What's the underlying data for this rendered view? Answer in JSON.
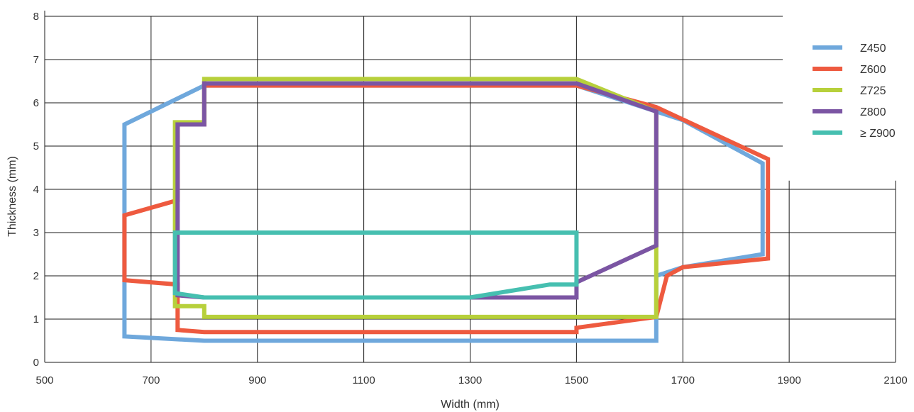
{
  "chart_data": {
    "type": "line",
    "title": "",
    "xlabel": "Width (mm)",
    "ylabel": "Thickness (mm)",
    "xlim": [
      500,
      2100
    ],
    "ylim": [
      0,
      8
    ],
    "x_ticks": [
      "500",
      "700",
      "900",
      "1100",
      "1300",
      "1500",
      "1700",
      "1900",
      "2100"
    ],
    "y_ticks": [
      "0",
      "1",
      "2",
      "3",
      "4",
      "5",
      "6",
      "7",
      "8"
    ],
    "grid": true,
    "legend_position": "top-right",
    "series": [
      {
        "name": "Z450",
        "color": "#6FA8DC",
        "closed": true,
        "points": [
          [
            650,
            0.6
          ],
          [
            800,
            0.5
          ],
          [
            1650,
            0.5
          ],
          [
            1650,
            2.0
          ],
          [
            1700,
            2.2
          ],
          [
            1850,
            2.5
          ],
          [
            1850,
            4.6
          ],
          [
            1700,
            5.6
          ],
          [
            1500,
            6.4
          ],
          [
            800,
            6.4
          ],
          [
            650,
            5.5
          ]
        ]
      },
      {
        "name": "Z600",
        "color": "#EE5A3F",
        "closed": true,
        "points": [
          [
            750,
            0.75
          ],
          [
            800,
            0.7
          ],
          [
            1500,
            0.7
          ],
          [
            1500,
            0.8
          ],
          [
            1650,
            1.05
          ],
          [
            1670,
            2.0
          ],
          [
            1700,
            2.2
          ],
          [
            1860,
            2.4
          ],
          [
            1860,
            4.7
          ],
          [
            1650,
            5.9
          ],
          [
            1500,
            6.4
          ],
          [
            800,
            6.4
          ],
          [
            800,
            5.5
          ],
          [
            750,
            5.5
          ],
          [
            750,
            3.75
          ],
          [
            650,
            3.4
          ],
          [
            650,
            1.9
          ],
          [
            750,
            1.8
          ]
        ]
      },
      {
        "name": "Z725",
        "color": "#B7D03B",
        "closed": true,
        "points": [
          [
            745,
            1.3
          ],
          [
            800,
            1.3
          ],
          [
            800,
            1.05
          ],
          [
            1650,
            1.05
          ],
          [
            1650,
            5.8
          ],
          [
            1500,
            6.55
          ],
          [
            800,
            6.55
          ],
          [
            800,
            5.55
          ],
          [
            745,
            5.55
          ]
        ]
      },
      {
        "name": "Z800",
        "color": "#7B55A3",
        "closed": true,
        "points": [
          [
            750,
            1.55
          ],
          [
            800,
            1.5
          ],
          [
            1500,
            1.5
          ],
          [
            1500,
            1.85
          ],
          [
            1650,
            2.7
          ],
          [
            1650,
            5.8
          ],
          [
            1500,
            6.45
          ],
          [
            800,
            6.45
          ],
          [
            800,
            5.5
          ],
          [
            750,
            5.5
          ]
        ]
      },
      {
        "name": "≥ Z900",
        "color": "#46BFB0",
        "closed": true,
        "points": [
          [
            745,
            1.6
          ],
          [
            800,
            1.5
          ],
          [
            1300,
            1.5
          ],
          [
            1450,
            1.8
          ],
          [
            1500,
            1.8
          ],
          [
            1500,
            3.0
          ],
          [
            745,
            3.0
          ]
        ]
      }
    ]
  }
}
